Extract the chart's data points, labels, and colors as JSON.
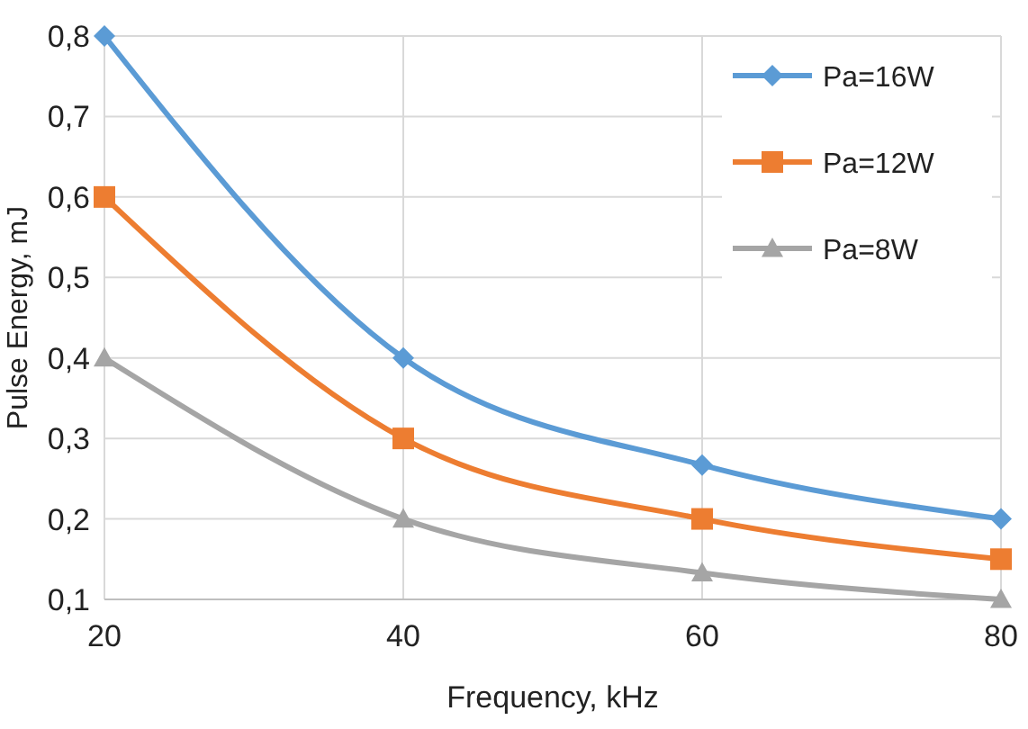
{
  "chart_data": {
    "type": "line",
    "xlabel": "Frequency, kHz",
    "ylabel": "Pulse Energy, mJ",
    "x": [
      20,
      40,
      60,
      80
    ],
    "series": [
      {
        "name": "Pa=16W",
        "color": "#5b9bd5",
        "marker": "diamond",
        "values": [
          0.8,
          0.4,
          0.267,
          0.2
        ]
      },
      {
        "name": "Pa=12W",
        "color": "#ed7d31",
        "marker": "square",
        "values": [
          0.6,
          0.3,
          0.2,
          0.15
        ]
      },
      {
        "name": "Pa=8W",
        "color": "#a5a5a5",
        "marker": "triangle",
        "values": [
          0.4,
          0.2,
          0.133,
          0.1
        ]
      }
    ],
    "xlim": [
      20,
      80
    ],
    "xticks": [
      20,
      40,
      60,
      80
    ],
    "ylim": [
      0.1,
      0.8
    ],
    "yticks": [
      {
        "value": 0.1,
        "label": "0,1"
      },
      {
        "value": 0.2,
        "label": "0,2"
      },
      {
        "value": 0.3,
        "label": "0,3"
      },
      {
        "value": 0.4,
        "label": "0,4"
      },
      {
        "value": 0.5,
        "label": "0,5"
      },
      {
        "value": 0.6,
        "label": "0,6"
      },
      {
        "value": 0.7,
        "label": "0,7"
      },
      {
        "value": 0.8,
        "label": "0,8"
      }
    ],
    "grid": true,
    "legend": "top right",
    "line_style": "solid"
  }
}
